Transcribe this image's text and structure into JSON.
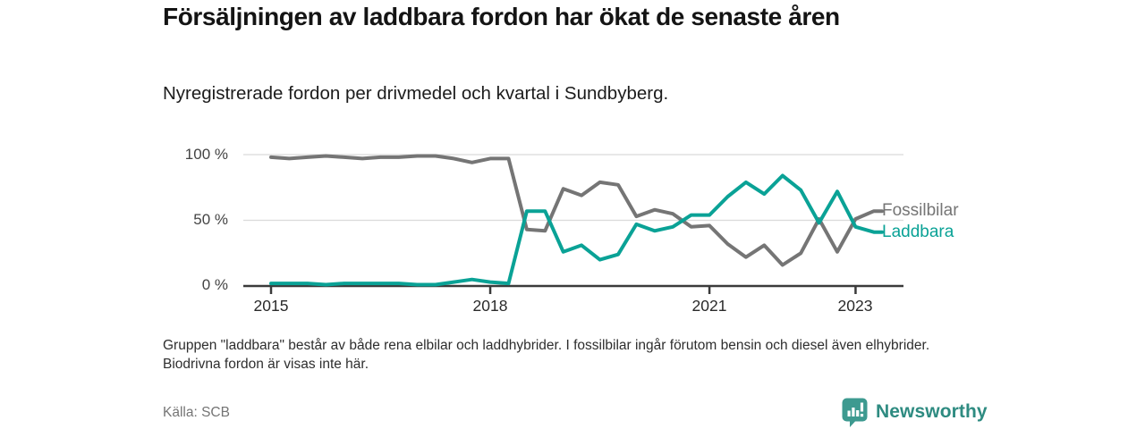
{
  "page": {
    "title": "Försäljningen av laddbara fordon har ökat de senaste åren",
    "subtitle": "Nyregistrerade fordon per drivmedel och kvartal i Sundbyberg.",
    "footnote": "Gruppen \"laddbara\" består av både rena elbilar och laddhybrider. I fossilbilar ingår förutom bensin och diesel även elhybrider. Biodrivna fordon är visas inte här.",
    "source": "Källa: SCB"
  },
  "branding": {
    "name": "Newsworthy",
    "icon": "bar-chart-speech-bubble-icon",
    "icon_color": "#3d9a90",
    "text_color": "#2e8b81"
  },
  "chart_data": {
    "type": "line",
    "unit": "%",
    "title": "Nyregistrerade fordon per drivmedel och kvartal i Sundbyberg",
    "ylim": [
      0,
      100
    ],
    "grid": "horizontal",
    "grid_color": "#dadada",
    "axis_color": "#3a3a3a",
    "legend_position": "right-of-line-ends",
    "x": [
      "2015 Q1",
      "2015 Q2",
      "2015 Q3",
      "2015 Q4",
      "2016 Q1",
      "2016 Q2",
      "2016 Q3",
      "2016 Q4",
      "2017 Q1",
      "2017 Q2",
      "2017 Q3",
      "2017 Q4",
      "2018 Q1",
      "2018 Q2",
      "2018 Q3",
      "2018 Q4",
      "2019 Q1",
      "2019 Q2",
      "2019 Q3",
      "2019 Q4",
      "2020 Q1",
      "2020 Q2",
      "2020 Q3",
      "2020 Q4",
      "2021 Q1",
      "2021 Q2",
      "2021 Q3",
      "2021 Q4",
      "2022 Q1",
      "2022 Q2",
      "2022 Q3",
      "2022 Q4",
      "2023 Q1",
      "2023 Q2"
    ],
    "series": [
      {
        "name": "Fossilbilar",
        "color": "#757575",
        "values": [
          98,
          97,
          98,
          99,
          98,
          97,
          98,
          98,
          99,
          99,
          97,
          94,
          97,
          97,
          43,
          42,
          74,
          69,
          79,
          77,
          53,
          58,
          55,
          45,
          46,
          32,
          22,
          31,
          16,
          25,
          51,
          26,
          51,
          57
        ]
      },
      {
        "name": "Laddbara",
        "color": "#0aa296",
        "values": [
          2,
          2,
          2,
          1,
          2,
          2,
          2,
          2,
          1,
          1,
          3,
          5,
          3,
          2,
          57,
          57,
          26,
          31,
          20,
          24,
          47,
          42,
          45,
          54,
          54,
          68,
          79,
          70,
          84,
          73,
          48,
          72,
          45,
          41
        ]
      }
    ],
    "yticks": [
      {
        "label": "100 %",
        "value": 100
      },
      {
        "label": "50 %",
        "value": 50
      },
      {
        "label": "0 %",
        "value": 0
      }
    ],
    "xticks": [
      {
        "label": "2015",
        "index": 0
      },
      {
        "label": "2018",
        "index": 12
      },
      {
        "label": "2021",
        "index": 24
      },
      {
        "label": "2023",
        "index": 32
      }
    ]
  }
}
